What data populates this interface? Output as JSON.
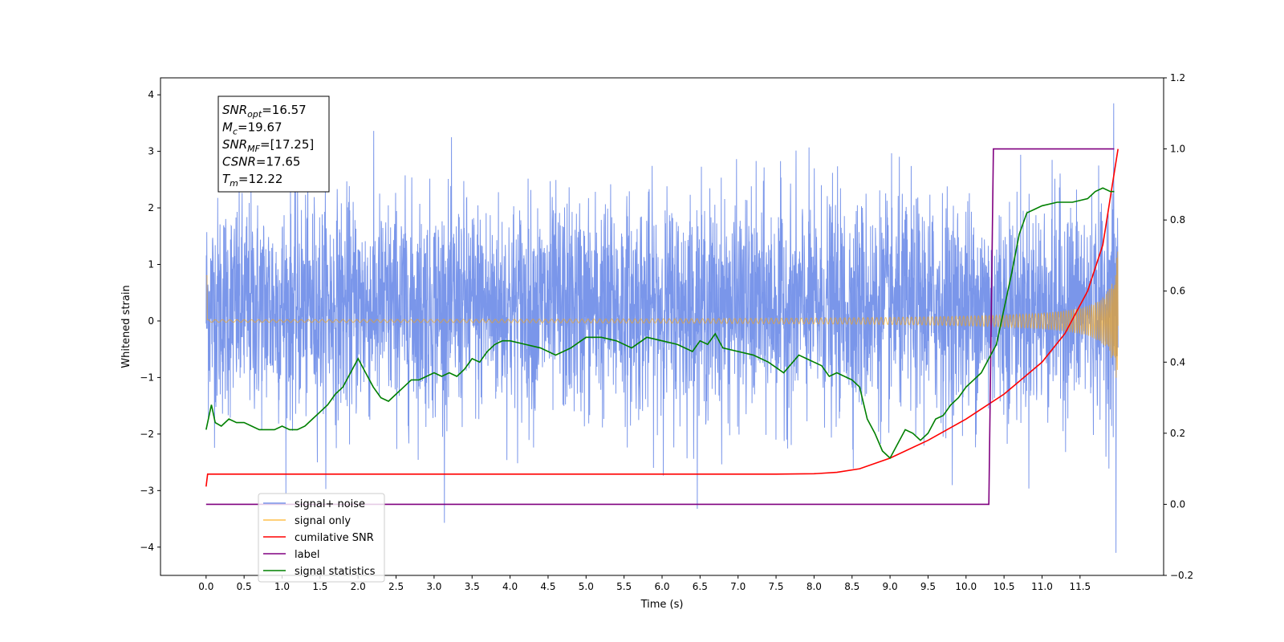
{
  "chart_data": {
    "type": "line",
    "xlabel": "Time (s)",
    "ylabel": "Whitened strain",
    "xlim": [
      -0.6,
      12.6
    ],
    "ylim_left": [
      -4.5,
      4.3
    ],
    "ylim_right": [
      -0.2,
      1.2
    ],
    "x_ticks": [
      "0.0",
      "0.5",
      "1.0",
      "1.5",
      "2.0",
      "2.5",
      "3.0",
      "3.5",
      "4.0",
      "4.5",
      "5.0",
      "5.5",
      "6.0",
      "6.5",
      "7.0",
      "7.5",
      "8.0",
      "8.5",
      "9.0",
      "9.5",
      "10.0",
      "10.5",
      "11.0",
      "11.5"
    ],
    "y_ticks_left": [
      "4",
      "3",
      "2",
      "1",
      "0",
      "−1",
      "−2",
      "−3",
      "−4"
    ],
    "y_ticks_right": [
      "1.2",
      "1.0",
      "0.8",
      "0.6",
      "0.4",
      "0.2",
      "0.0",
      "−0.2"
    ],
    "grid": false,
    "legend_position": "lower-left",
    "colors": {
      "noise": "#4169e1",
      "signal": "#ffa500",
      "csnr": "#ff0000",
      "label": "#800080",
      "stats": "#008000"
    },
    "legend": [
      {
        "name": "signal+ noise",
        "color": "#4169e1"
      },
      {
        "name": "signal only",
        "color": "#ffa500"
      },
      {
        "name": "cumilative SNR",
        "color": "#ff0000"
      },
      {
        "name": "label",
        "color": "#800080"
      },
      {
        "name": "signal statistics",
        "color": "#008000"
      }
    ],
    "series": [
      {
        "name": "signal+ noise",
        "axis": "left",
        "description_values": {
          "duration": 12.0,
          "typical_range": [
            -2.5,
            3.0
          ]
        }
      },
      {
        "name": "signal only",
        "axis": "left",
        "envelope": {
          "start": 0.0,
          "merger_time": 12.0,
          "peak_amplitude": 1.4
        }
      },
      {
        "name": "cumilative SNR",
        "axis": "right",
        "x": [
          0.0,
          0.02,
          0.5,
          2,
          4,
          6,
          7.5,
          8.0,
          8.3,
          8.6,
          9.0,
          9.5,
          10.0,
          10.5,
          11.0,
          11.3,
          11.6,
          11.8,
          12.0
        ],
        "y": [
          0.05,
          0.085,
          0.085,
          0.085,
          0.085,
          0.085,
          0.085,
          0.086,
          0.09,
          0.1,
          0.13,
          0.18,
          0.24,
          0.31,
          0.4,
          0.48,
          0.6,
          0.73,
          1.0
        ]
      },
      {
        "name": "label",
        "axis": "right",
        "x": [
          0.0,
          10.3,
          10.36,
          11.95
        ],
        "y": [
          0.0,
          0.0,
          1.0,
          1.0
        ]
      },
      {
        "name": "signal statistics",
        "axis": "right",
        "x": [
          0.0,
          0.07,
          0.12,
          0.2,
          0.3,
          0.4,
          0.5,
          0.6,
          0.7,
          0.8,
          0.9,
          1.0,
          1.1,
          1.2,
          1.3,
          1.4,
          1.5,
          1.6,
          1.7,
          1.8,
          1.9,
          2.0,
          2.1,
          2.2,
          2.3,
          2.4,
          2.5,
          2.6,
          2.7,
          2.8,
          2.9,
          3.0,
          3.1,
          3.2,
          3.3,
          3.4,
          3.5,
          3.6,
          3.7,
          3.8,
          3.9,
          4.0,
          4.2,
          4.4,
          4.6,
          4.8,
          5.0,
          5.2,
          5.4,
          5.6,
          5.8,
          6.0,
          6.2,
          6.4,
          6.5,
          6.6,
          6.7,
          6.8,
          7.0,
          7.2,
          7.4,
          7.6,
          7.8,
          7.9,
          8.0,
          8.1,
          8.2,
          8.3,
          8.4,
          8.5,
          8.6,
          8.7,
          8.8,
          8.9,
          9.0,
          9.1,
          9.2,
          9.3,
          9.4,
          9.5,
          9.6,
          9.7,
          9.8,
          9.9,
          10.0,
          10.1,
          10.2,
          10.3,
          10.4,
          10.5,
          10.6,
          10.7,
          10.8,
          10.9,
          11.0,
          11.2,
          11.4,
          11.6,
          11.7,
          11.8,
          11.9,
          11.95
        ],
        "y": [
          0.21,
          0.28,
          0.23,
          0.22,
          0.24,
          0.23,
          0.23,
          0.22,
          0.21,
          0.21,
          0.21,
          0.22,
          0.21,
          0.21,
          0.22,
          0.24,
          0.26,
          0.28,
          0.31,
          0.33,
          0.37,
          0.41,
          0.37,
          0.33,
          0.3,
          0.29,
          0.31,
          0.33,
          0.35,
          0.35,
          0.36,
          0.37,
          0.36,
          0.37,
          0.36,
          0.38,
          0.41,
          0.4,
          0.43,
          0.45,
          0.46,
          0.46,
          0.45,
          0.44,
          0.42,
          0.44,
          0.47,
          0.47,
          0.46,
          0.44,
          0.47,
          0.46,
          0.45,
          0.43,
          0.46,
          0.45,
          0.48,
          0.44,
          0.43,
          0.42,
          0.4,
          0.37,
          0.42,
          0.41,
          0.4,
          0.39,
          0.36,
          0.37,
          0.36,
          0.35,
          0.33,
          0.24,
          0.2,
          0.15,
          0.13,
          0.17,
          0.21,
          0.2,
          0.18,
          0.2,
          0.24,
          0.25,
          0.28,
          0.3,
          0.33,
          0.35,
          0.37,
          0.41,
          0.45,
          0.55,
          0.65,
          0.76,
          0.82,
          0.83,
          0.84,
          0.85,
          0.85,
          0.86,
          0.88,
          0.89,
          0.88,
          0.88
        ]
      }
    ],
    "annotation_box": [
      {
        "var": "SNR",
        "sub": "opt",
        "value": "=16.57"
      },
      {
        "var": "M",
        "sub": "c",
        "value": "=19.67"
      },
      {
        "var": "SNR",
        "sub": "MF",
        "value": "=[17.25]"
      },
      {
        "var": "CSNR",
        "sub": "",
        "value": "=17.65"
      },
      {
        "var": "T",
        "sub": "m",
        "value": "=12.22"
      }
    ]
  }
}
